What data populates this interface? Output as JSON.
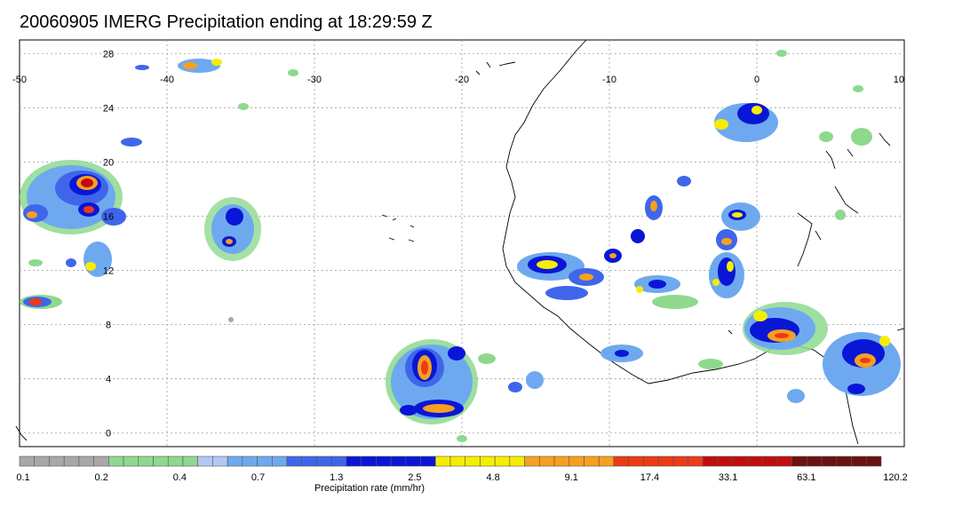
{
  "title": "20060905 IMERG Precipitation ending at 18:29:59 Z",
  "map": {
    "lon_range": [
      -50,
      10
    ],
    "lat_range": [
      -1,
      29
    ],
    "lon_labels": [
      "-50",
      "-40",
      "-30",
      "-20",
      "-10",
      "0",
      "10"
    ],
    "lat_labels": [
      "28",
      "24",
      "20",
      "16",
      "12",
      "8",
      "4",
      "0"
    ],
    "grid": "dotted"
  },
  "colorbar": {
    "title": "Precipitation rate (mm/hr)",
    "tick_labels": [
      "0.1",
      "0.2",
      "0.4",
      "0.7",
      "1.3",
      "2.5",
      "4.8",
      "9.1",
      "17.4",
      "33.1",
      "63.1",
      "120.2"
    ],
    "groups": [
      {
        "color": "#a8a8a8",
        "count": 6
      },
      {
        "color": "#8ed98e",
        "count": 6
      },
      {
        "color": "#b4c8f5",
        "count": 2
      },
      {
        "color": "#6ea9f0",
        "count": 4
      },
      {
        "color": "#3f66ea",
        "count": 4
      },
      {
        "color": "#0a16d6",
        "count": 6
      },
      {
        "color": "#f5ee00",
        "count": 6
      },
      {
        "color": "#f5a020",
        "count": 6
      },
      {
        "color": "#ee3a16",
        "count": 6
      },
      {
        "color": "#c40c0c",
        "count": 6
      },
      {
        "color": "#6e1010",
        "count": 6
      }
    ]
  },
  "colors": {
    "coast": "#000000",
    "grid": "#9a9a9a",
    "precip_light": "#8ed98e",
    "precip_low": "#6ea9f0",
    "precip_mid": "#0a16d6",
    "precip_high": "#f5ee00",
    "precip_vhigh": "#f5a020",
    "precip_ext": "#c40c0c"
  }
}
